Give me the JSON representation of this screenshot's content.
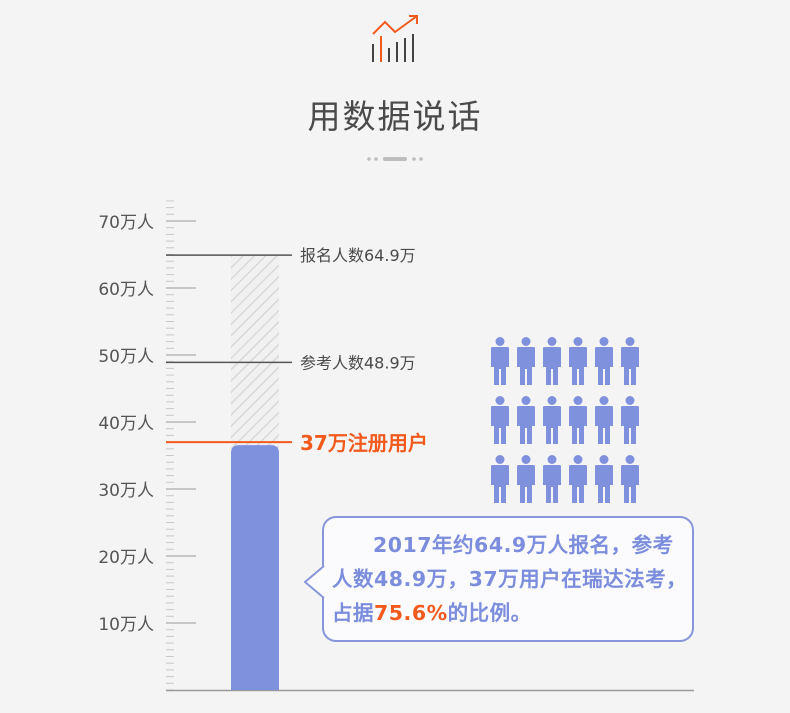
{
  "title": "用数据说话",
  "chart_data": {
    "type": "bar",
    "orientation": "vertical",
    "ylim": [
      0,
      73.5
    ],
    "y_unit": "万人",
    "ticks": [
      {
        "value": 70,
        "label": "70万人"
      },
      {
        "value": 60,
        "label": "60万人"
      },
      {
        "value": 50,
        "label": "50万人"
      },
      {
        "value": 40,
        "label": "40万人"
      },
      {
        "value": 30,
        "label": "30万人"
      },
      {
        "value": 20,
        "label": "20万人"
      },
      {
        "value": 10,
        "label": "10万人"
      }
    ],
    "markers": [
      {
        "value": 64.9,
        "label": "报名人数64.9万"
      },
      {
        "value": 48.9,
        "label": "参考人数48.9万"
      },
      {
        "value": 37,
        "label": "37万注册用户"
      }
    ],
    "bar": {
      "value": 37,
      "name": "注册用户"
    },
    "background_bar": {
      "value": 64.9,
      "name": "报名人数"
    }
  },
  "people_grid": {
    "rows": 3,
    "cols": 6
  },
  "bubble": {
    "text_before": "2017年约64.9万人报名，参考人数48.9万，37万用户在瑞达法考，占据",
    "highlight": "75.6%",
    "text_after": "的比例。"
  },
  "colors": {
    "bar": "#7f91dc",
    "accent": "#f25a1d",
    "line": "#555555",
    "text": "#4a4a4a",
    "person": "#7f91dc"
  }
}
